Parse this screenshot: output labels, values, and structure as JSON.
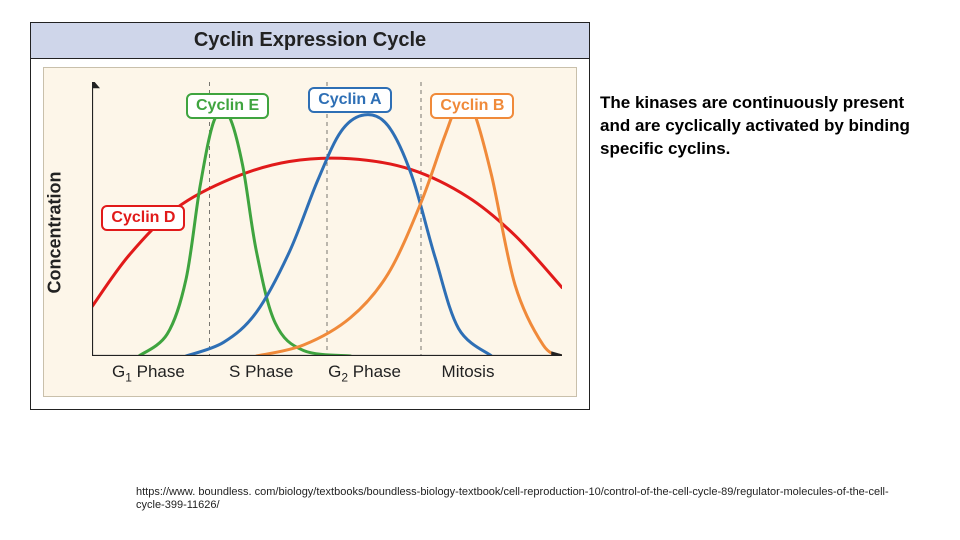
{
  "chart": {
    "type": "line",
    "title": "Cyclin Expression Cycle",
    "ylabel": "Concentration",
    "background_color": "#fdf6e9",
    "title_bar_color": "#cfd6ea",
    "axis_color": "#222222",
    "grid_dash": "4 4",
    "line_width": 3,
    "xlim": [
      0,
      100
    ],
    "ylim": [
      0,
      100
    ],
    "x_grid": [
      25,
      50,
      70
    ],
    "x_ticks": [
      {
        "pos": 12,
        "label": "G1 Phase",
        "sub": "1"
      },
      {
        "pos": 36,
        "label": "S Phase"
      },
      {
        "pos": 58,
        "label": "G2 Phase",
        "sub": "2"
      },
      {
        "pos": 80,
        "label": "Mitosis"
      }
    ],
    "series": {
      "cyclinD": {
        "label": "Cyclin D",
        "color": "#e11a1a",
        "points": [
          [
            0,
            18
          ],
          [
            8,
            37
          ],
          [
            18,
            54
          ],
          [
            30,
            65
          ],
          [
            42,
            71
          ],
          [
            55,
            72
          ],
          [
            68,
            68
          ],
          [
            80,
            58
          ],
          [
            90,
            44
          ],
          [
            100,
            25
          ]
        ]
      },
      "cyclinE": {
        "label": "Cyclin E",
        "color": "#3fa43f",
        "points": [
          [
            10,
            0
          ],
          [
            16,
            8
          ],
          [
            20,
            28
          ],
          [
            23,
            62
          ],
          [
            26,
            86
          ],
          [
            29,
            88
          ],
          [
            32,
            70
          ],
          [
            35,
            38
          ],
          [
            39,
            12
          ],
          [
            45,
            2
          ],
          [
            55,
            0
          ]
        ]
      },
      "cyclinA": {
        "label": "Cyclin A",
        "color": "#2e6fb5",
        "points": [
          [
            20,
            0
          ],
          [
            28,
            5
          ],
          [
            35,
            16
          ],
          [
            42,
            38
          ],
          [
            48,
            64
          ],
          [
            53,
            82
          ],
          [
            58,
            88
          ],
          [
            63,
            84
          ],
          [
            68,
            66
          ],
          [
            73,
            36
          ],
          [
            78,
            10
          ],
          [
            85,
            0
          ]
        ]
      },
      "cyclinB": {
        "label": "Cyclin B",
        "color": "#f08a3a",
        "points": [
          [
            35,
            0
          ],
          [
            45,
            4
          ],
          [
            55,
            14
          ],
          [
            63,
            30
          ],
          [
            70,
            56
          ],
          [
            75,
            80
          ],
          [
            78,
            92
          ],
          [
            81,
            90
          ],
          [
            85,
            66
          ],
          [
            90,
            26
          ],
          [
            96,
            4
          ],
          [
            100,
            0
          ]
        ]
      }
    },
    "badges": {
      "cyclinD": {
        "left_pct": 2,
        "top_pct": 45
      },
      "cyclinE": {
        "left_pct": 20,
        "top_pct": 4
      },
      "cyclinA": {
        "left_pct": 46,
        "top_pct": 2
      },
      "cyclinB": {
        "left_pct": 72,
        "top_pct": 4
      }
    }
  },
  "side_text": "The kinases are continuously present and are cyclically activated by binding specific cyclins.",
  "citation": "https://www. boundless. com/biology/textbooks/boundless-biology-textbook/cell-reproduction-10/control-of-the-cell-cycle-89/regulator-molecules-of-the-cell-cycle-399-11626/"
}
